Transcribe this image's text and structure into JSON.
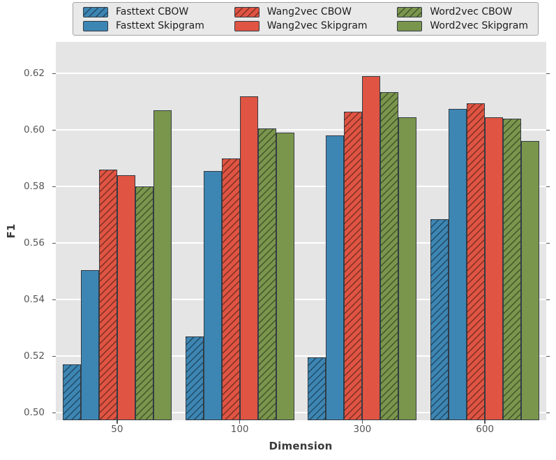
{
  "figure": {
    "plot_background": "#e5e5e5",
    "grid_color": "#ffffff",
    "tick_color": "#555555",
    "bar_edge_color": "#333c44"
  },
  "chart_data": {
    "type": "bar",
    "title": "",
    "xlabel": "Dimension",
    "ylabel": "F1",
    "categories": [
      "50",
      "100",
      "300",
      "600"
    ],
    "series": [
      {
        "name": "Fasttext CBOW",
        "color": "#3d86b4",
        "hatched": true,
        "values": [
          0.517,
          0.527,
          0.5195,
          0.5685
        ]
      },
      {
        "name": "Fasttext Skipgram",
        "color": "#3d86b4",
        "hatched": false,
        "values": [
          0.5505,
          0.5855,
          0.598,
          0.6075
        ]
      },
      {
        "name": "Wang2vec CBOW",
        "color": "#df5442",
        "hatched": true,
        "values": [
          0.586,
          0.59,
          0.6065,
          0.6095
        ]
      },
      {
        "name": "Wang2vec Skipgram",
        "color": "#df5442",
        "hatched": false,
        "values": [
          0.584,
          0.612,
          0.619,
          0.6045
        ]
      },
      {
        "name": "Word2vec CBOW",
        "color": "#7a964d",
        "hatched": true,
        "values": [
          0.58,
          0.6005,
          0.6135,
          0.604
        ]
      },
      {
        "name": "Word2vec Skipgram",
        "color": "#7a964d",
        "hatched": false,
        "values": [
          0.607,
          0.599,
          0.6045,
          0.596
        ]
      }
    ],
    "yticks": [
      0.5,
      0.52,
      0.54,
      0.56,
      0.58,
      0.6,
      0.62
    ],
    "ylim": [
      0.4973,
      0.6312
    ],
    "grid": true,
    "legend_position": "top",
    "legend_columns": 3
  }
}
